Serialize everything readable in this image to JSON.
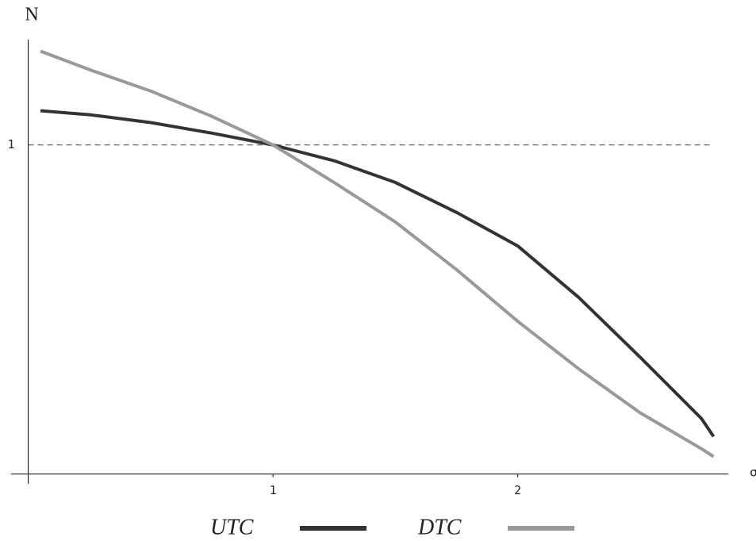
{
  "chart_data": {
    "type": "line",
    "x_label": "σ",
    "y_label": "N",
    "x": [
      0.05,
      0.25,
      0.5,
      0.75,
      1.0,
      1.25,
      1.5,
      1.75,
      2.0,
      2.25,
      2.5,
      2.75,
      2.8
    ],
    "series": [
      {
        "name": "UTC",
        "color": "#333333",
        "values": [
          1.104,
          1.092,
          1.068,
          1.036,
          1.0,
          0.952,
          0.886,
          0.795,
          0.693,
          0.536,
          0.355,
          0.169,
          0.114
        ]
      },
      {
        "name": "DTC",
        "color": "#999999",
        "values": [
          1.285,
          1.229,
          1.164,
          1.087,
          1.0,
          0.886,
          0.766,
          0.621,
          0.464,
          0.319,
          0.186,
          0.077,
          0.053
        ]
      }
    ],
    "xlim": [
      -0.07,
      2.86
    ],
    "ylim": [
      -0.03,
      1.32
    ],
    "xticks": [
      1,
      2
    ],
    "yticks": [
      1
    ],
    "grid": "dashed",
    "legend": "bottom"
  }
}
